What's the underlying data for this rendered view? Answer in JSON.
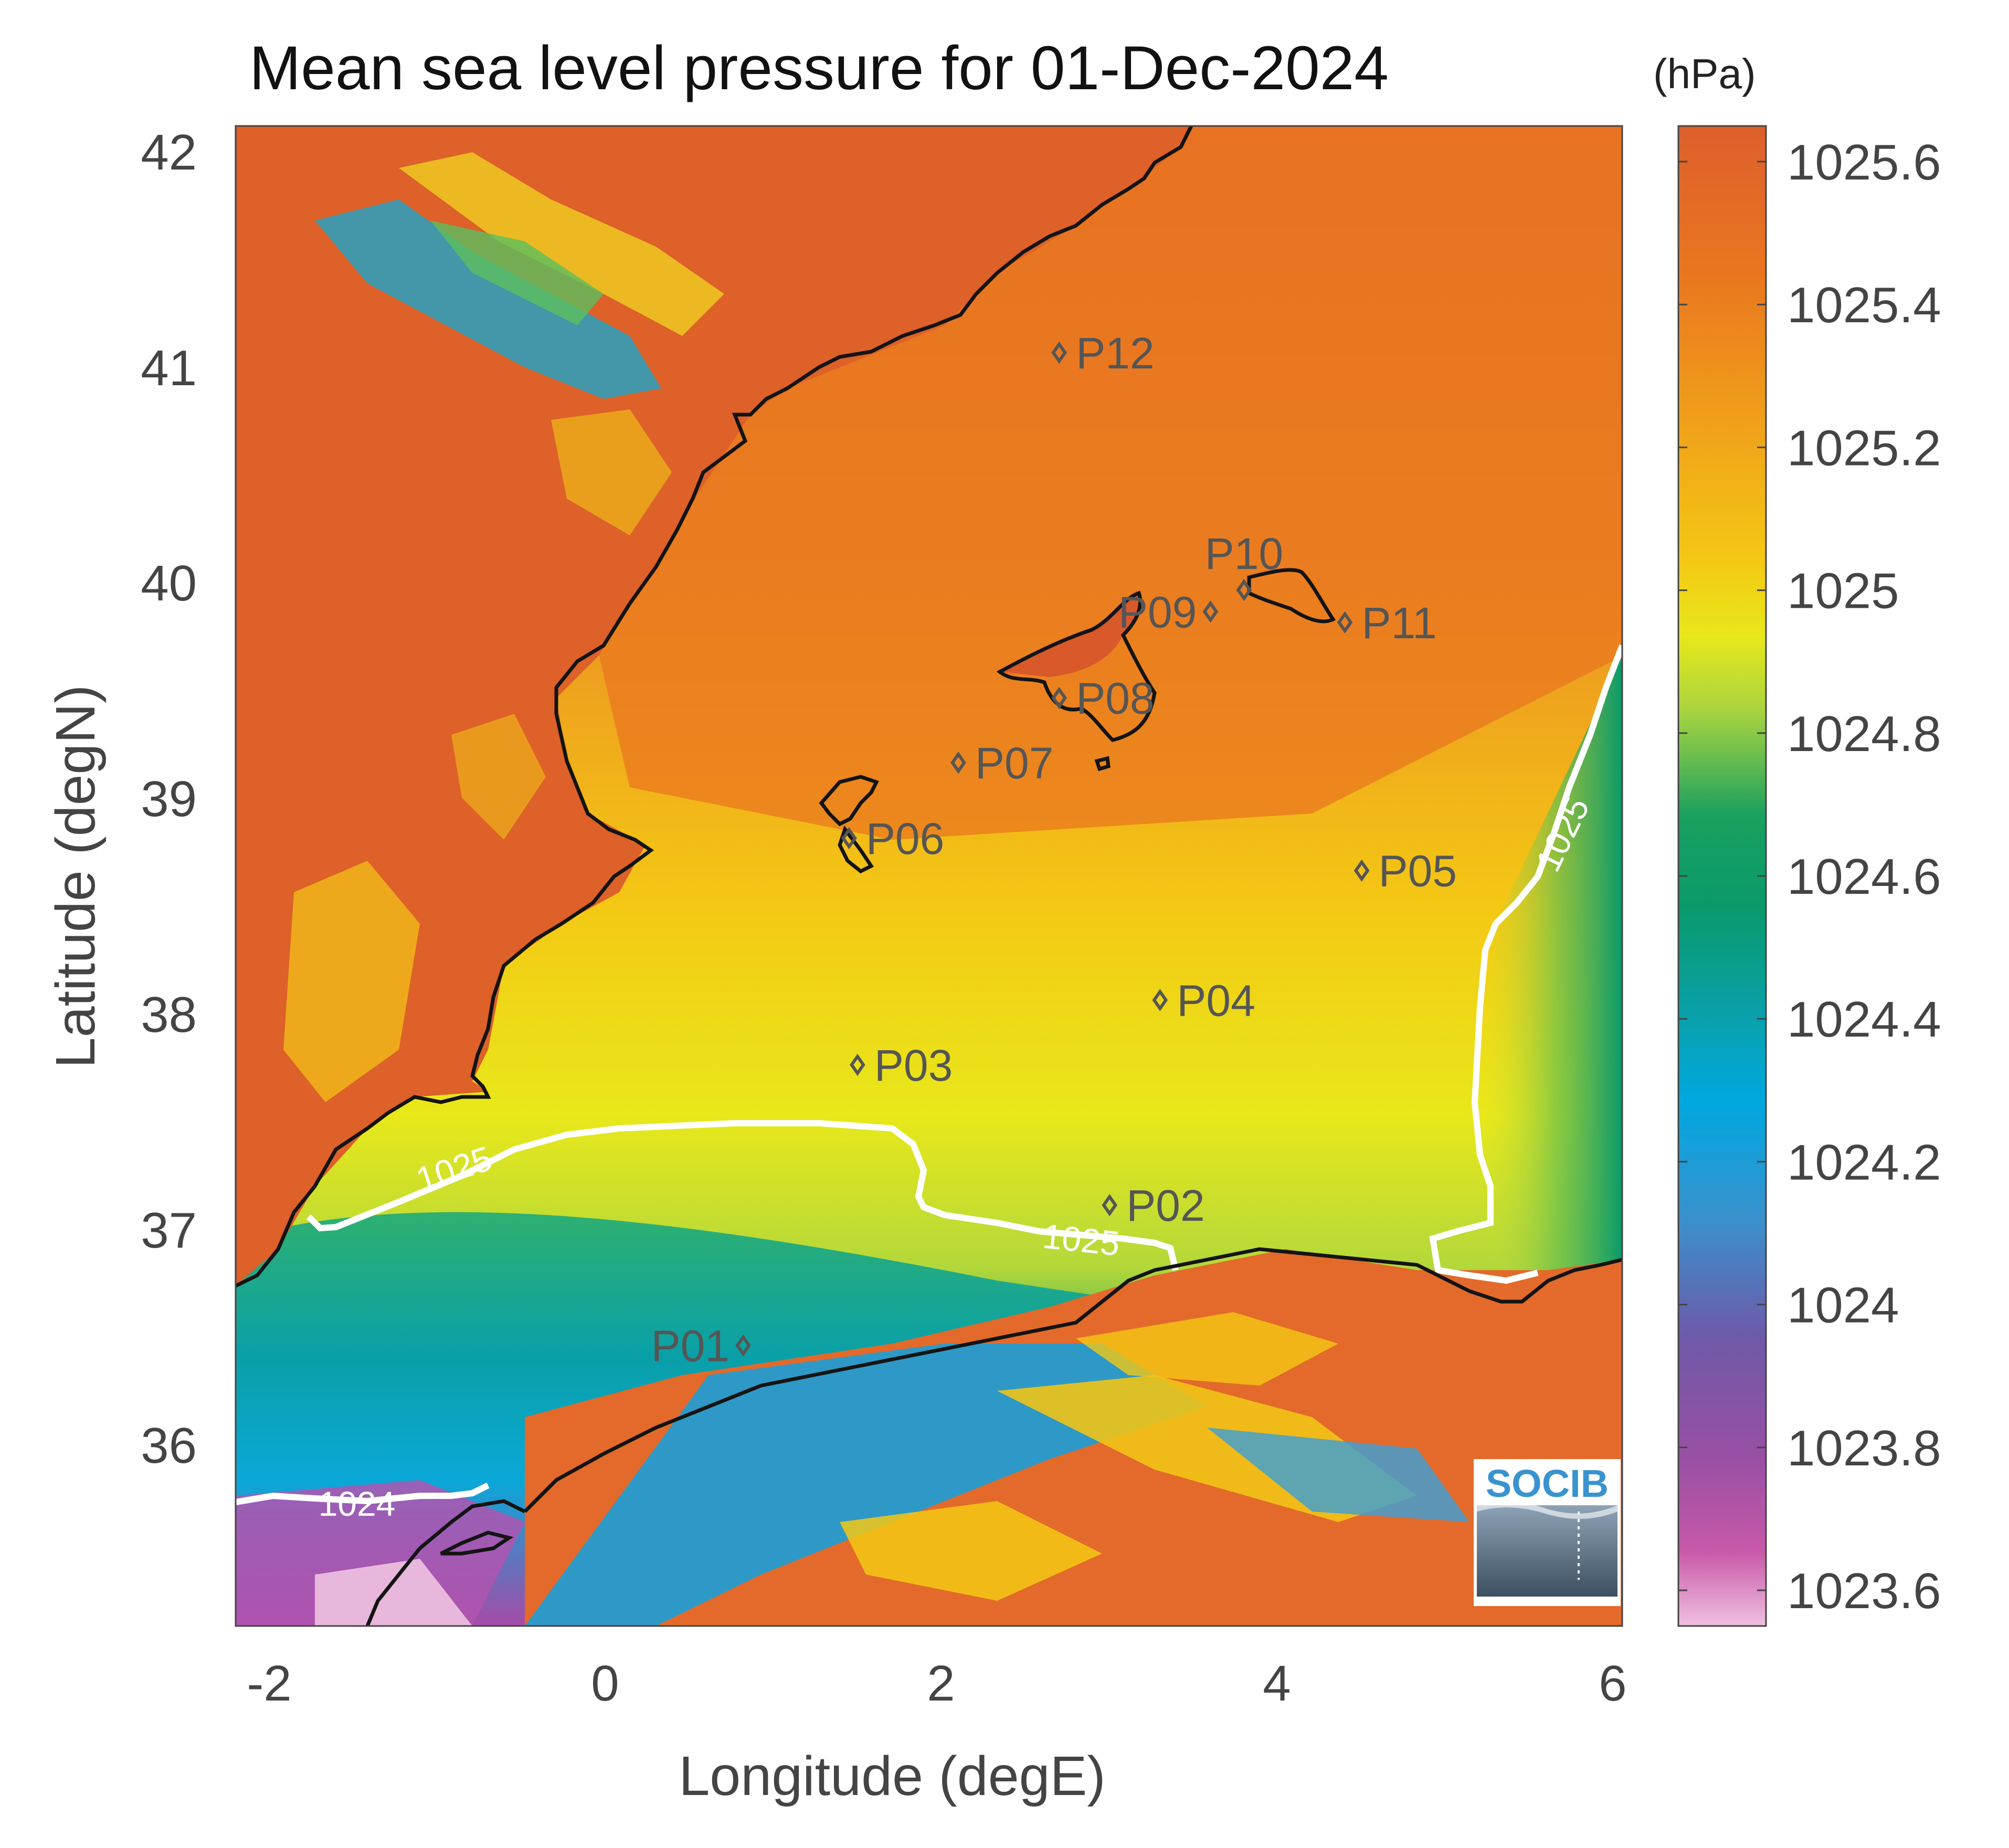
{
  "title": "Mean sea level pressure for 01-Dec-2024",
  "units": "(hPa)",
  "logo_text": "SOCIB",
  "chart_data": {
    "type": "heatmap",
    "title": "Mean sea level pressure for 01-Dec-2024",
    "xlabel": "Longitude (degE)",
    "ylabel": "Latitude (degN)",
    "xlim": [
      -2.2,
      6.05
    ],
    "ylim": [
      35.2,
      42.15
    ],
    "x_ticks": [
      -2,
      0,
      2,
      4,
      6
    ],
    "y_ticks": [
      36,
      37,
      38,
      39,
      40,
      41,
      42
    ],
    "colorbar": {
      "label": "(hPa)",
      "range": [
        1023.55,
        1025.65
      ],
      "ticks": [
        1023.6,
        1023.8,
        1024,
        1024.2,
        1024.4,
        1024.6,
        1024.8,
        1025,
        1025.2,
        1025.4,
        1025.6
      ],
      "tick_labels": [
        "1023.6",
        "1023.8",
        "1024",
        "1024.2",
        "1024.4",
        "1024.6",
        "1024.8",
        "1025",
        "1025.2",
        "1025.4",
        "1025.6"
      ]
    },
    "contours": [
      {
        "level": 1025,
        "label": "1025"
      },
      {
        "level": 1024,
        "label": "1024"
      }
    ],
    "stations": [
      {
        "name": "P01",
        "lon": 0.82,
        "lat": 36.5
      },
      {
        "name": "P02",
        "lon": 3.0,
        "lat": 37.15
      },
      {
        "name": "P03",
        "lon": 1.5,
        "lat": 37.8
      },
      {
        "name": "P04",
        "lon": 3.3,
        "lat": 38.1
      },
      {
        "name": "P05",
        "lon": 4.5,
        "lat": 38.7
      },
      {
        "name": "P06",
        "lon": 1.45,
        "lat": 38.85
      },
      {
        "name": "P07",
        "lon": 2.1,
        "lat": 39.2
      },
      {
        "name": "P08",
        "lon": 2.7,
        "lat": 39.5
      },
      {
        "name": "P09",
        "lon": 3.6,
        "lat": 39.9
      },
      {
        "name": "P10",
        "lon": 3.8,
        "lat": 40.0
      },
      {
        "name": "P11",
        "lon": 4.4,
        "lat": 39.85
      },
      {
        "name": "P12",
        "lon": 2.7,
        "lat": 41.1
      }
    ]
  }
}
